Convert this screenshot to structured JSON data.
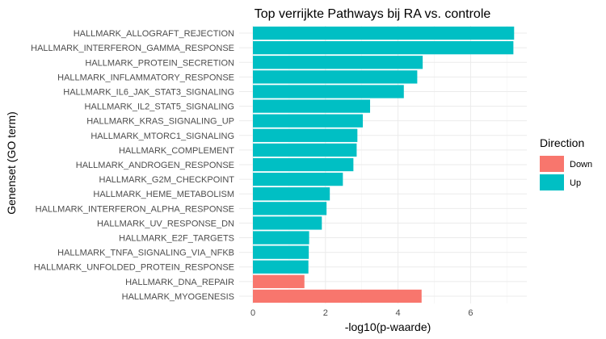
{
  "chart_data": {
    "type": "bar",
    "orientation": "horizontal",
    "title": "Top verrijkte Pathways bij RA vs. controle",
    "xlabel": "-log10(p-waarde)",
    "ylabel": "Genenset (GO term)",
    "xlim": [
      0,
      7.5
    ],
    "xticks": [
      0,
      2,
      4,
      6
    ],
    "grid": true,
    "legend": {
      "title": "Direction",
      "position": "right",
      "entries": [
        {
          "label": "Down",
          "color": "#F8766D"
        },
        {
          "label": "Up",
          "color": "#00BFC4"
        }
      ]
    },
    "bars": [
      {
        "category": "HALLMARK_ALLOGRAFT_REJECTION",
        "value": 7.2,
        "direction": "Up"
      },
      {
        "category": "HALLMARK_INTERFERON_GAMMA_RESPONSE",
        "value": 7.18,
        "direction": "Up"
      },
      {
        "category": "HALLMARK_PROTEIN_SECRETION",
        "value": 4.68,
        "direction": "Up"
      },
      {
        "category": "HALLMARK_INFLAMMATORY_RESPONSE",
        "value": 4.53,
        "direction": "Up"
      },
      {
        "category": "HALLMARK_IL6_JAK_STAT3_SIGNALING",
        "value": 4.16,
        "direction": "Up"
      },
      {
        "category": "HALLMARK_IL2_STAT5_SIGNALING",
        "value": 3.23,
        "direction": "Up"
      },
      {
        "category": "HALLMARK_KRAS_SIGNALING_UP",
        "value": 3.03,
        "direction": "Up"
      },
      {
        "category": "HALLMARK_MTORC1_SIGNALING",
        "value": 2.88,
        "direction": "Up"
      },
      {
        "category": "HALLMARK_COMPLEMENT",
        "value": 2.86,
        "direction": "Up"
      },
      {
        "category": "HALLMARK_ANDROGEN_RESPONSE",
        "value": 2.77,
        "direction": "Up"
      },
      {
        "category": "HALLMARK_G2M_CHECKPOINT",
        "value": 2.48,
        "direction": "Up"
      },
      {
        "category": "HALLMARK_HEME_METABOLISM",
        "value": 2.12,
        "direction": "Up"
      },
      {
        "category": "HALLMARK_INTERFERON_ALPHA_RESPONSE",
        "value": 2.03,
        "direction": "Up"
      },
      {
        "category": "HALLMARK_UV_RESPONSE_DN",
        "value": 1.9,
        "direction": "Up"
      },
      {
        "category": "HALLMARK_E2F_TARGETS",
        "value": 1.55,
        "direction": "Up"
      },
      {
        "category": "HALLMARK_TNFA_SIGNALING_VIA_NFKB",
        "value": 1.54,
        "direction": "Up"
      },
      {
        "category": "HALLMARK_UNFOLDED_PROTEIN_RESPONSE",
        "value": 1.53,
        "direction": "Up"
      },
      {
        "category": "HALLMARK_DNA_REPAIR",
        "value": 1.42,
        "direction": "Down"
      },
      {
        "category": "HALLMARK_MYOGENESIS",
        "value": 4.65,
        "direction": "Down"
      }
    ]
  }
}
